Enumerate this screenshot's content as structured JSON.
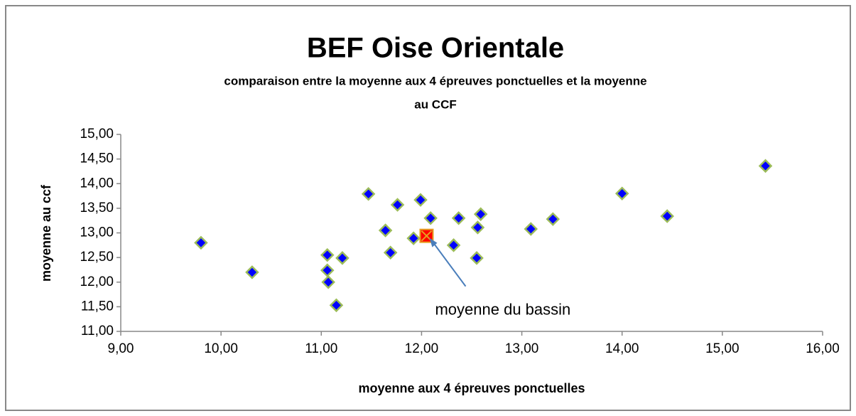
{
  "chart_data": {
    "type": "scatter",
    "title": "BEF Oise Orientale",
    "subtitle": [
      "comparaison  entre la moyenne aux 4 épreuves ponctuelles et la moyenne",
      "au CCF"
    ],
    "x_label": "moyenne aux 4 épreuves ponctuelles",
    "y_label": "moyenne au ccf",
    "annotation": "moyenne du bassin",
    "series": [
      {
        "color": "#0000ff",
        "marker": "diamond",
        "x": [
          9.8,
          10.31,
          11.06,
          11.06,
          11.07,
          11.15,
          11.21,
          11.47,
          11.76,
          11.64,
          11.69,
          11.92,
          11.99,
          12.09,
          12.32,
          12.37,
          12.59,
          12.56,
          12.55,
          13.09,
          13.31,
          14.0,
          14.45,
          15.43
        ],
        "values": [
          12.8,
          12.2,
          12.55,
          12.24,
          12.0,
          11.53,
          12.49,
          13.79,
          13.57,
          13.05,
          12.6,
          12.89,
          13.67,
          13.3,
          12.75,
          13.3,
          13.38,
          13.11,
          12.49,
          13.08,
          13.28,
          13.8,
          13.34,
          14.36
        ]
      },
      {
        "color": "#ff0000",
        "marker": "square-x",
        "x": [
          12.05
        ],
        "values": [
          12.94
        ]
      }
    ],
    "xlim": [
      9,
      16
    ],
    "xticks": [
      {
        "value": 9,
        "label": "9,00"
      },
      {
        "value": 10,
        "label": "10,00"
      },
      {
        "value": 11,
        "label": "11,00"
      },
      {
        "value": 12,
        "label": "12,00"
      },
      {
        "value": 13,
        "label": "13,00"
      },
      {
        "value": 14,
        "label": "14,00"
      },
      {
        "value": 15,
        "label": "15,00"
      },
      {
        "value": 16,
        "label": "16,00"
      }
    ],
    "ylim": [
      11,
      15
    ],
    "yticks": [
      {
        "value": 11,
        "label": "11,00"
      },
      {
        "value": 11.5,
        "label": "11,50"
      },
      {
        "value": 12,
        "label": "12,00"
      },
      {
        "value": 12.5,
        "label": "12,50"
      },
      {
        "value": 13,
        "label": "13,00"
      },
      {
        "value": 13.5,
        "label": "13,50"
      },
      {
        "value": 14,
        "label": "14,00"
      },
      {
        "value": 14.5,
        "label": "14,50"
      },
      {
        "value": 15,
        "label": "15,00"
      }
    ],
    "grid": false
  }
}
